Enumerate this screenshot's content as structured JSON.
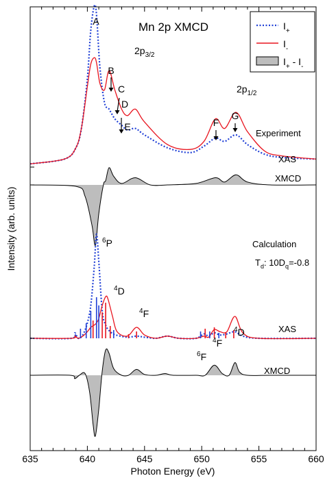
{
  "chart_data": {
    "type": "line",
    "title": "Mn 2p XMCD",
    "xlabel": "Photon Energy (eV)",
    "ylabel": "Intensity (arb. units)",
    "xlim": [
      635,
      660
    ],
    "x_ticks": [
      635,
      640,
      645,
      650,
      655,
      660
    ],
    "grid": false,
    "legend": {
      "placement": "top-right",
      "entries": [
        {
          "label": "I+",
          "style": "dotted",
          "color": "#1f3fd6"
        },
        {
          "label": "I-",
          "style": "solid",
          "color": "#e8141e"
        },
        {
          "label": "I+ - I-",
          "style": "filled",
          "color": "#bdbdbd"
        }
      ]
    },
    "colors": {
      "i_plus": "#1f3fd6",
      "i_minus": "#e8141e",
      "xmcd_fill": "#bdbdbd",
      "axis": "#000000"
    },
    "panels": [
      {
        "name": "Experiment",
        "label": "Experiment",
        "xas_label": "XAS",
        "xmcd_label": "XMCD",
        "edge_labels": {
          "l3": "2p3/2",
          "l2": "2p1/2"
        },
        "peaks": [
          {
            "name": "A",
            "x": 640.7
          },
          {
            "name": "B",
            "x": 641.9
          },
          {
            "name": "C",
            "x": 642.4
          },
          {
            "name": "D",
            "x": 642.7
          },
          {
            "name": "E",
            "x": 644.2
          },
          {
            "name": "F",
            "x": 651.2
          },
          {
            "name": "G",
            "x": 653.0
          }
        ],
        "series": [
          {
            "name": "I+",
            "x": [
              635,
              638,
              639,
              639.5,
              640,
              640.3,
              640.6,
              640.8,
              641.1,
              641.5,
              641.9,
              642.4,
              643,
              643.5,
              644.2,
              645,
              647,
              649,
              650.2,
              651.2,
              652,
              653,
              654,
              655.5,
              657,
              660
            ],
            "y": [
              0.02,
              0.05,
              0.12,
              0.25,
              0.55,
              0.85,
              1.0,
              0.95,
              0.62,
              0.4,
              0.36,
              0.3,
              0.26,
              0.23,
              0.24,
              0.2,
              0.12,
              0.09,
              0.13,
              0.18,
              0.16,
              0.2,
              0.14,
              0.08,
              0.06,
              0.05
            ]
          },
          {
            "name": "I-",
            "x": [
              635,
              638,
              639,
              639.5,
              640,
              640.3,
              640.6,
              640.8,
              641.1,
              641.5,
              641.9,
              642.4,
              643,
              643.5,
              644.2,
              645,
              647,
              649,
              650.2,
              651.2,
              652,
              653,
              654,
              655.5,
              657,
              660
            ],
            "y": [
              0.02,
              0.05,
              0.12,
              0.25,
              0.5,
              0.64,
              0.68,
              0.65,
              0.52,
              0.48,
              0.6,
              0.48,
              0.36,
              0.32,
              0.36,
              0.28,
              0.14,
              0.11,
              0.16,
              0.3,
              0.24,
              0.34,
              0.22,
              0.1,
              0.07,
              0.05
            ]
          },
          {
            "name": "I+ - I-",
            "x": [
              635,
              639,
              639.8,
              640.4,
              640.7,
              641.0,
              641.4,
              641.6,
              641.9,
              642.3,
              643,
              644.2,
              645.5,
              647,
              649.5,
              651.2,
              652,
              653,
              654,
              656,
              660
            ],
            "y": [
              0,
              -0.01,
              -0.08,
              -0.28,
              -0.42,
              -0.2,
              0.0,
              0.03,
              0.12,
              0.06,
              0.01,
              0.05,
              0.0,
              0.0,
              0.01,
              0.05,
              0.02,
              0.07,
              0.02,
              0.0,
              0.0
            ]
          }
        ]
      },
      {
        "name": "Calculation",
        "label": "Calculation",
        "sublabel": "Td: 10Dq=-0.8",
        "xas_label": "XAS",
        "xmcd_label": "XMCD",
        "peaks": [
          {
            "name": "6P",
            "x": 640.9
          },
          {
            "name": "4D",
            "x": 641.7
          },
          {
            "name": "4F",
            "x": 644.3
          },
          {
            "name": "6F",
            "x": 650.3
          },
          {
            "name": "4F",
            "x": 651.1
          },
          {
            "name": "4D",
            "x": 652.9
          }
        ],
        "series": [
          {
            "name": "I+",
            "x": [
              635,
              638.6,
              638.9,
              639.2,
              639.6,
              640.0,
              640.3,
              640.6,
              640.8,
              641.0,
              641.3,
              641.6,
              642.0,
              642.5,
              643.5,
              644.3,
              645,
              646,
              647,
              648,
              649.5,
              650.2,
              650.6,
              651.1,
              651.6,
              652.2,
              652.9,
              653.6,
              655,
              660
            ],
            "y": [
              0,
              0.0,
              0.05,
              0.0,
              0.03,
              0.14,
              0.3,
              0.65,
              0.95,
              0.7,
              0.25,
              0.12,
              0.06,
              0.03,
              0.01,
              0.02,
              0.01,
              0.0,
              0.02,
              0.0,
              0.0,
              0.04,
              0.02,
              0.05,
              0.03,
              0.04,
              0.06,
              0.02,
              0.0,
              0.0
            ]
          },
          {
            "name": "I-",
            "x": [
              635,
              638.6,
              638.9,
              639.2,
              639.6,
              640.0,
              640.3,
              640.6,
              640.8,
              641.0,
              641.3,
              641.6,
              641.8,
              642.2,
              642.6,
              643.5,
              644.3,
              645,
              646,
              647,
              648,
              649.5,
              650.2,
              650.6,
              651.1,
              651.6,
              652.2,
              652.9,
              653.6,
              655,
              660
            ],
            "y": [
              0,
              0.0,
              0.02,
              0.0,
              0.02,
              0.06,
              0.1,
              0.12,
              0.14,
              0.18,
              0.3,
              0.38,
              0.36,
              0.2,
              0.06,
              0.02,
              0.1,
              0.03,
              0.0,
              0.02,
              0.0,
              0.0,
              0.02,
              0.01,
              0.08,
              0.06,
              0.06,
              0.2,
              0.05,
              0.0,
              0.0
            ]
          },
          {
            "name": "I+ - I-",
            "x": [
              635,
              638.5,
              638.9,
              639.3,
              639.8,
              640.2,
              640.5,
              640.7,
              641.0,
              641.3,
              641.6,
              641.9,
              642.3,
              643,
              643.6,
              644.3,
              645,
              646,
              646.8,
              647.5,
              649.5,
              650.3,
              651.1,
              651.8,
              652.4,
              652.9,
              653.3,
              654,
              656,
              660
            ],
            "y": [
              0,
              0.0,
              -0.04,
              0.0,
              0.02,
              -0.2,
              -0.58,
              -0.72,
              -0.4,
              0.05,
              0.3,
              0.26,
              0.08,
              0.0,
              0.0,
              0.07,
              0.01,
              0.0,
              0.02,
              0.0,
              0.0,
              0.0,
              0.12,
              0.02,
              0.0,
              0.15,
              0.04,
              0.0,
              0.0,
              0.0
            ]
          }
        ]
      }
    ]
  }
}
